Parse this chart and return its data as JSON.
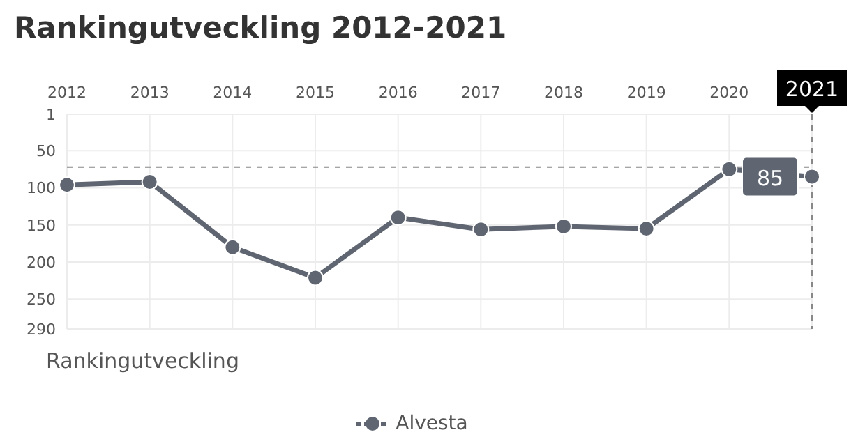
{
  "chart_data": {
    "type": "line",
    "title": "Rankingutveckling 2012-2021",
    "categories": [
      "2012",
      "2013",
      "2014",
      "2015",
      "2016",
      "2017",
      "2018",
      "2019",
      "2020",
      "2021"
    ],
    "series": [
      {
        "name": "Alvesta",
        "color": "#5f6672",
        "values": [
          96,
          92,
          180,
          221,
          140,
          156,
          152,
          155,
          75,
          85
        ],
        "value_labels": [
          null,
          null,
          null,
          null,
          null,
          null,
          null,
          null,
          null,
          "85"
        ]
      }
    ],
    "ylim": [
      290,
      1
    ],
    "yticks": [
      1,
      50,
      100,
      150,
      200,
      250,
      290
    ],
    "ref_lines": [
      {
        "axis": "x",
        "value": "2021",
        "line_style": "dashed",
        "color": "#888888"
      },
      {
        "axis": "y",
        "value": 72,
        "line_style": "dashed",
        "color": "#888888"
      }
    ],
    "annotations": [
      "Rankingutveckling"
    ],
    "grid": true,
    "legend": "bottom",
    "marker": "circle",
    "line_style": "solid"
  }
}
